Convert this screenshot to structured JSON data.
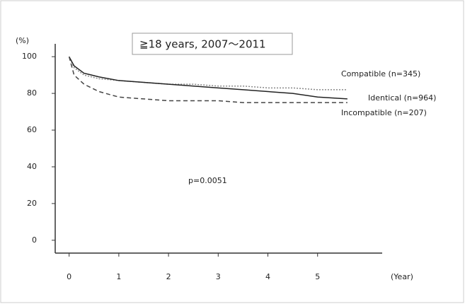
{
  "chart_data": {
    "type": "line",
    "title": "≧18 years, 2007～2011",
    "x_label": "(Year)",
    "y_label": "(%)",
    "annotation": "p=0.0051",
    "x": [
      0,
      0.1,
      0.3,
      0.6,
      1,
      1.5,
      2,
      2.5,
      3,
      3.5,
      4,
      4.5,
      5,
      5.6
    ],
    "series": [
      {
        "name": "Compatible (n=345)",
        "color": "#888888",
        "style": "dotted",
        "values": [
          100,
          94,
          90,
          88,
          87,
          86,
          85,
          85,
          84,
          84,
          83,
          83,
          82,
          82
        ]
      },
      {
        "name": "Identical (n=964)",
        "color": "#222222",
        "style": "solid",
        "values": [
          100,
          95,
          91,
          89,
          87,
          86,
          85,
          84,
          83,
          82,
          81,
          80,
          78,
          77
        ]
      },
      {
        "name": "Incompatible (n=207)",
        "color": "#444444",
        "style": "dashed",
        "values": [
          100,
          90,
          85,
          81,
          78,
          77,
          76,
          76,
          76,
          75,
          75,
          75,
          75,
          75
        ]
      }
    ],
    "xlim": [
      -0.28,
      6.3
    ],
    "ylim": [
      -7,
      107
    ],
    "xticks": [
      0,
      1,
      2,
      3,
      4,
      5
    ],
    "yticks": [
      0,
      20,
      40,
      60,
      80,
      100
    ]
  }
}
